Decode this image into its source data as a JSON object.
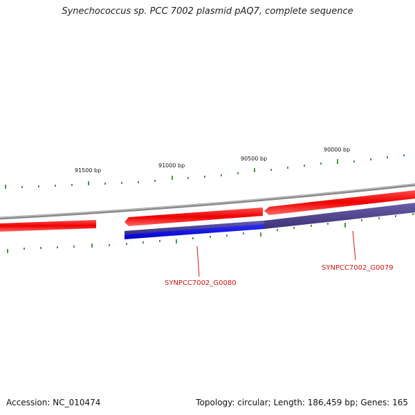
{
  "title": "Synechococcus sp. PCC 7002 plasmid pAQ7, complete sequence",
  "footer": {
    "accession": "Accession: NC_010474",
    "summary": "Topology: circular; Length: 186,459 bp; Genes: 165"
  },
  "scale": {
    "labels": [
      "91500 bp",
      "91000 bp",
      "90500 bp",
      "90000 bp"
    ]
  },
  "genes": [
    {
      "label": "SYNPCC7002_G0080"
    },
    {
      "label": "SYNPCC7002_G0079"
    }
  ],
  "colors": {
    "backbone": "#888888",
    "gene_forward": "#ee1111",
    "cds_blue": "#1a1ae6",
    "cds_purple": "#4b3f8a",
    "tick": "#1a7a1a",
    "label_red": "#dd1111"
  }
}
